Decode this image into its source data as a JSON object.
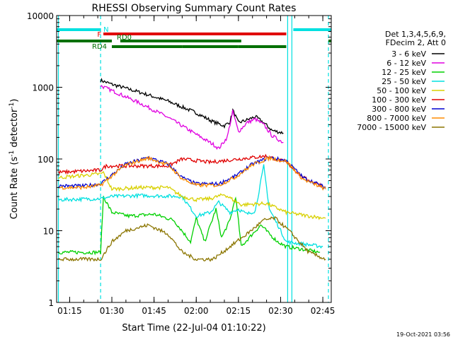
{
  "chart_data": {
    "type": "line",
    "title": "RHESSI Observing Summary Count Rates",
    "xlabel": "Start Time (22-Jul-04 01:10:22)",
    "ylabel_parts": [
      "Count Rate (s",
      "-1",
      " detector",
      "-1",
      ")"
    ],
    "yscale": "log",
    "ylim": [
      1,
      10000
    ],
    "xlim": [
      "01:10:22",
      "02:48:00"
    ],
    "x_ticks": [
      "01:15",
      "01:30",
      "01:45",
      "02:00",
      "02:15",
      "02:30",
      "02:45"
    ],
    "y_ticks": [
      "1",
      "10",
      "100",
      "1000",
      "10000"
    ],
    "legend": {
      "position": "right",
      "header": [
        "Det 1,3,4,5,6,9,",
        "FDecim 2, Att 0"
      ],
      "entries": [
        {
          "label": "3 - 6 keV",
          "color": "#000000"
        },
        {
          "label": "6 - 12 keV",
          "color": "#e000e0"
        },
        {
          "label": "12 - 25 keV",
          "color": "#00d000"
        },
        {
          "label": "25 - 50 keV",
          "color": "#00e0e0"
        },
        {
          "label": "50 - 100 keV",
          "color": "#d8d000"
        },
        {
          "label": "100 - 300 keV",
          "color": "#e00000"
        },
        {
          "label": "300 - 800 keV",
          "color": "#0000d0"
        },
        {
          "label": "800 - 7000 keV",
          "color": "#ff8c00"
        },
        {
          "label": "7000 - 15000 keV",
          "color": "#8b7500"
        }
      ]
    },
    "flag_bars": [
      {
        "label": "N",
        "color": "#00e0e0",
        "segments": [
          [
            "01:10:22",
            "01:26:00"
          ],
          [
            "02:34:30",
            "02:48:00"
          ]
        ]
      },
      {
        "label": "F",
        "color": "#e00000",
        "segments": [
          [
            "01:27:00",
            "02:32:00"
          ]
        ]
      },
      {
        "label": "RD0",
        "color": "#007000",
        "segments": [
          [
            "01:10:22",
            "01:30:00"
          ],
          [
            "01:33:00",
            "02:16:00"
          ],
          [
            "02:47:00",
            "02:48:00"
          ]
        ]
      },
      {
        "label": "RD4",
        "color": "#007000",
        "segments": [
          [
            "01:30:00",
            "01:55:00"
          ],
          [
            "01:55:00",
            "02:15:00"
          ],
          [
            "02:15:00",
            "02:32:00"
          ]
        ]
      }
    ],
    "vlines": [
      {
        "x": "01:11:00",
        "style": "solid",
        "color": "#00e0e0"
      },
      {
        "x": "01:26:00",
        "style": "dashed",
        "color": "#00e0e0"
      },
      {
        "x": "02:32:30",
        "style": "solid",
        "color": "#00e0e0"
      },
      {
        "x": "02:34:00",
        "style": "solid",
        "color": "#00e0e0"
      },
      {
        "x": "02:47:00",
        "style": "dashed",
        "color": "#00e0e0"
      }
    ],
    "series": [
      {
        "color": "#000000",
        "points": [
          [
            "01:26:00",
            1250
          ],
          [
            "01:30:00",
            1100
          ],
          [
            "01:40:00",
            850
          ],
          [
            "01:50:00",
            640
          ],
          [
            "02:00:00",
            440
          ],
          [
            "02:06:00",
            330
          ],
          [
            "02:10:00",
            290
          ],
          [
            "02:12:00",
            330
          ],
          [
            "02:13:00",
            480
          ],
          [
            "02:15:00",
            320
          ],
          [
            "02:18:00",
            350
          ],
          [
            "02:21:00",
            390
          ],
          [
            "02:24:00",
            320
          ],
          [
            "02:27:00",
            250
          ],
          [
            "02:31:00",
            230
          ]
        ]
      },
      {
        "color": "#e000e0",
        "points": [
          [
            "01:26:00",
            1050
          ],
          [
            "01:30:00",
            900
          ],
          [
            "01:40:00",
            600
          ],
          [
            "01:50:00",
            380
          ],
          [
            "02:00:00",
            220
          ],
          [
            "02:06:00",
            160
          ],
          [
            "02:08:00",
            140
          ],
          [
            "02:11:00",
            200
          ],
          [
            "02:13:00",
            460
          ],
          [
            "02:15:00",
            240
          ],
          [
            "02:18:00",
            320
          ],
          [
            "02:21:00",
            360
          ],
          [
            "02:24:00",
            300
          ],
          [
            "02:27:00",
            210
          ],
          [
            "02:31:00",
            170
          ]
        ]
      },
      {
        "color": "#00d000",
        "points": [
          [
            "01:11:00",
            5
          ],
          [
            "01:26:00",
            5
          ],
          [
            "01:27:00",
            30
          ],
          [
            "01:30:00",
            18
          ],
          [
            "01:36:00",
            16
          ],
          [
            "01:45:00",
            17
          ],
          [
            "01:52:00",
            14
          ],
          [
            "01:58:00",
            7
          ],
          [
            "02:00:00",
            15
          ],
          [
            "02:03:00",
            7
          ],
          [
            "02:07:00",
            20
          ],
          [
            "02:09:00",
            8
          ],
          [
            "02:12:00",
            14
          ],
          [
            "02:14:00",
            30
          ],
          [
            "02:16:00",
            6
          ],
          [
            "02:20:00",
            9
          ],
          [
            "02:23:00",
            12
          ],
          [
            "02:26:00",
            9
          ],
          [
            "02:29:00",
            7
          ],
          [
            "02:32:00",
            6
          ],
          [
            "02:44:00",
            5
          ]
        ]
      },
      {
        "color": "#00e0e0",
        "points": [
          [
            "01:11:00",
            27
          ],
          [
            "01:26:00",
            28
          ],
          [
            "01:30:00",
            30
          ],
          [
            "01:40:00",
            31
          ],
          [
            "01:55:00",
            30
          ],
          [
            "02:00:00",
            16
          ],
          [
            "02:05:00",
            18
          ],
          [
            "02:08:00",
            25
          ],
          [
            "02:12:00",
            18
          ],
          [
            "02:15:00",
            20
          ],
          [
            "02:18:00",
            17
          ],
          [
            "02:21:00",
            19
          ],
          [
            "02:24:00",
            80
          ],
          [
            "02:26:00",
            20
          ],
          [
            "02:29:00",
            12
          ],
          [
            "02:32:00",
            7
          ],
          [
            "02:45:00",
            6
          ]
        ]
      },
      {
        "color": "#d8d000",
        "points": [
          [
            "01:11:00",
            55
          ],
          [
            "01:26:00",
            62
          ],
          [
            "01:27:00",
            65
          ],
          [
            "01:30:00",
            38
          ],
          [
            "01:40:00",
            40
          ],
          [
            "01:50:00",
            40
          ],
          [
            "01:55:00",
            30
          ],
          [
            "02:00:00",
            27
          ],
          [
            "02:05:00",
            28
          ],
          [
            "02:10:00",
            32
          ],
          [
            "02:16:00",
            23
          ],
          [
            "02:25:00",
            24
          ],
          [
            "02:32:00",
            18
          ],
          [
            "02:40:00",
            16
          ],
          [
            "02:46:00",
            15
          ]
        ]
      },
      {
        "color": "#e00000",
        "points": [
          [
            "01:11:00",
            65
          ],
          [
            "01:26:00",
            70
          ],
          [
            "01:28:00",
            80
          ],
          [
            "01:40:00",
            80
          ],
          [
            "01:50:00",
            80
          ],
          [
            "01:55:00",
            100
          ],
          [
            "02:05:00",
            90
          ],
          [
            "02:15:00",
            100
          ],
          [
            "02:25:00",
            110
          ],
          [
            "02:32:00",
            90
          ],
          [
            "02:38:00",
            55
          ],
          [
            "02:45:00",
            42
          ]
        ]
      },
      {
        "color": "#0000d0",
        "points": [
          [
            "01:11:00",
            42
          ],
          [
            "01:20:00",
            42
          ],
          [
            "01:26:00",
            45
          ],
          [
            "01:30:00",
            60
          ],
          [
            "01:35:00",
            85
          ],
          [
            "01:43:00",
            105
          ],
          [
            "01:50:00",
            85
          ],
          [
            "01:55:00",
            55
          ],
          [
            "02:00:00",
            45
          ],
          [
            "02:08:00",
            45
          ],
          [
            "02:14:00",
            58
          ],
          [
            "02:20:00",
            85
          ],
          [
            "02:26:00",
            105
          ],
          [
            "02:32:00",
            95
          ],
          [
            "02:38:00",
            55
          ],
          [
            "02:46:00",
            40
          ]
        ]
      },
      {
        "color": "#ff8c00",
        "points": [
          [
            "01:11:00",
            40
          ],
          [
            "01:20:00",
            40
          ],
          [
            "01:26:00",
            43
          ],
          [
            "01:30:00",
            58
          ],
          [
            "01:35:00",
            83
          ],
          [
            "01:43:00",
            103
          ],
          [
            "01:50:00",
            83
          ],
          [
            "01:55:00",
            53
          ],
          [
            "02:00:00",
            43
          ],
          [
            "02:08:00",
            43
          ],
          [
            "02:14:00",
            56
          ],
          [
            "02:20:00",
            83
          ],
          [
            "02:26:00",
            103
          ],
          [
            "02:32:00",
            93
          ],
          [
            "02:38:00",
            52
          ],
          [
            "02:46:00",
            38
          ]
        ]
      },
      {
        "color": "#8b7500",
        "points": [
          [
            "01:11:00",
            4
          ],
          [
            "01:20:00",
            4
          ],
          [
            "01:26:00",
            4
          ],
          [
            "01:30:00",
            7
          ],
          [
            "01:35:00",
            10
          ],
          [
            "01:43:00",
            12
          ],
          [
            "01:50:00",
            9
          ],
          [
            "01:55:00",
            5
          ],
          [
            "02:00:00",
            4
          ],
          [
            "02:06:00",
            4
          ],
          [
            "02:12:00",
            6
          ],
          [
            "02:18:00",
            9
          ],
          [
            "02:24:00",
            14
          ],
          [
            "02:28:00",
            15
          ],
          [
            "02:33:00",
            10
          ],
          [
            "02:40:00",
            5
          ],
          [
            "02:46:00",
            4
          ]
        ]
      }
    ],
    "timestamp": "19-Oct-2021 03:56"
  }
}
